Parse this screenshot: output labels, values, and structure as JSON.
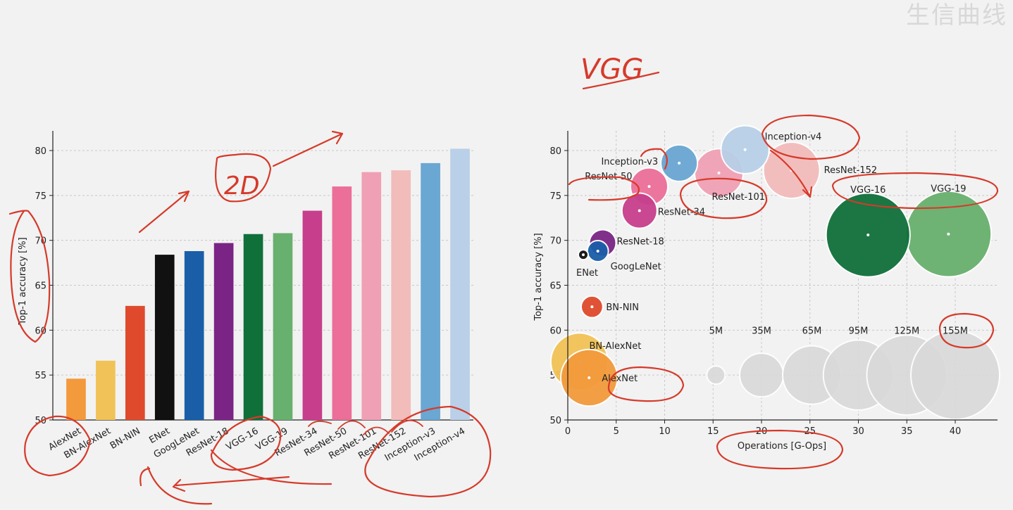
{
  "watermark": "生信曲线",
  "handwriting": {
    "vgg_note": "VGG",
    "arrow_note": "2D"
  },
  "colors": {
    "AlexNet": "#f39a3c",
    "BN-AlexNet": "#f1c257",
    "BN-NIN": "#e04a2c",
    "ENet": "#111111",
    "GoogLeNet": "#1a5ea8",
    "ResNet-18": "#7a2585",
    "VGG-16": "#10703a",
    "VGG-19": "#68b06e",
    "ResNet-34": "#c73f8c",
    "ResNet-50": "#ec6f99",
    "ResNet-101": "#f0a0b4",
    "ResNet-152": "#f2bcbb",
    "Inception-v3": "#6aa7d3",
    "Inception-v4": "#b9d0e8",
    "ink": "#d63a2a",
    "size_ref": "#d9d9d9"
  },
  "chart_data": [
    {
      "type": "bar",
      "categories": [
        "AlexNet",
        "BN-AlexNet",
        "BN-NIN",
        "ENet",
        "GoogLeNet",
        "ResNet-18",
        "VGG-16",
        "VGG-19",
        "ResNet-34",
        "ResNet-50",
        "ResNet-101",
        "ResNet-152",
        "Inception-v3",
        "Inception-v4"
      ],
      "values": [
        54.6,
        56.6,
        62.7,
        68.4,
        68.8,
        69.7,
        70.7,
        70.8,
        73.3,
        76.0,
        77.6,
        77.8,
        78.6,
        80.2
      ],
      "ylabel": "Top-1 accuracy [%]",
      "ylim": [
        50,
        80
      ],
      "yticks": [
        50,
        55,
        60,
        65,
        70,
        75,
        80
      ],
      "grid": true
    },
    {
      "type": "scatter",
      "xlabel": "Operations [G-Ops]",
      "ylabel": "Top-1 accuracy [%]",
      "xlim": [
        0,
        44
      ],
      "ylim": [
        50,
        82
      ],
      "xticks": [
        0,
        5,
        10,
        15,
        20,
        25,
        30,
        35,
        40
      ],
      "yticks": [
        50,
        55,
        60,
        65,
        70,
        75,
        80
      ],
      "grid": true,
      "points": [
        {
          "name": "AlexNet",
          "ops": 2.2,
          "acc": 54.7,
          "params_M": 61
        },
        {
          "name": "BN-AlexNet",
          "ops": 1.2,
          "acc": 56.5,
          "params_M": 62
        },
        {
          "name": "BN-NIN",
          "ops": 2.5,
          "acc": 62.6,
          "params_M": 7.5
        },
        {
          "name": "ENet",
          "ops": 1.6,
          "acc": 68.4,
          "params_M": 0.37
        },
        {
          "name": "GoogLeNet",
          "ops": 3.1,
          "acc": 68.8,
          "params_M": 7
        },
        {
          "name": "ResNet-18",
          "ops": 3.6,
          "acc": 69.7,
          "params_M": 12
        },
        {
          "name": "VGG-16",
          "ops": 31.0,
          "acc": 70.6,
          "params_M": 138
        },
        {
          "name": "VGG-19",
          "ops": 39.3,
          "acc": 70.7,
          "params_M": 144
        },
        {
          "name": "ResNet-34",
          "ops": 7.4,
          "acc": 73.3,
          "params_M": 22
        },
        {
          "name": "ResNet-50",
          "ops": 8.4,
          "acc": 76.0,
          "params_M": 25
        },
        {
          "name": "ResNet-101",
          "ops": 15.6,
          "acc": 77.5,
          "params_M": 44
        },
        {
          "name": "ResNet-152",
          "ops": 23.1,
          "acc": 77.8,
          "params_M": 60
        },
        {
          "name": "Inception-v3",
          "ops": 11.5,
          "acc": 78.6,
          "params_M": 24
        },
        {
          "name": "Inception-v4",
          "ops": 18.3,
          "acc": 80.1,
          "params_M": 43
        }
      ],
      "size_legend": [
        {
          "label": "5M",
          "params_M": 5,
          "ops": 15.3
        },
        {
          "label": "35M",
          "params_M": 35,
          "ops": 20.0
        },
        {
          "label": "65M",
          "params_M": 65,
          "ops": 25.2
        },
        {
          "label": "95M",
          "params_M": 95,
          "ops": 30.0
        },
        {
          "label": "125M",
          "params_M": 125,
          "ops": 35.0
        },
        {
          "label": "155M",
          "params_M": 155,
          "ops": 40.0
        }
      ],
      "size_legend_acc": 55
    }
  ]
}
